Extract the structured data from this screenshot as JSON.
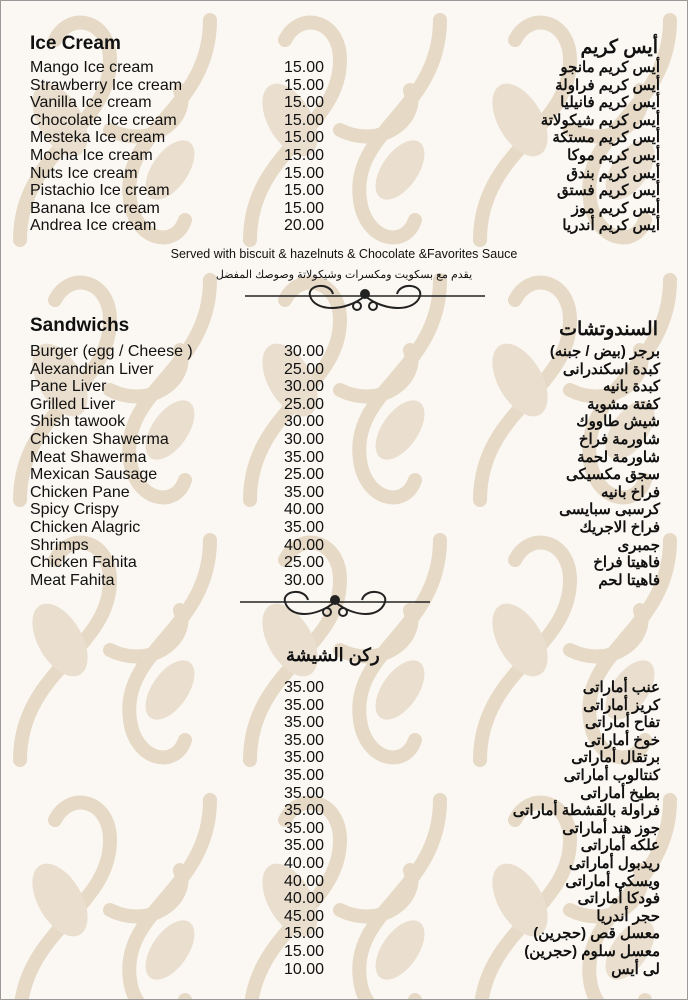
{
  "colors": {
    "background": "#fbf8f3",
    "pattern": "#e6d9c6",
    "text": "#111111"
  },
  "ice_cream": {
    "title_en": "Ice Cream",
    "title_ar": "أيس كريم",
    "items": [
      {
        "en": "Mango Ice cream",
        "price": "15.00",
        "ar": "أيس كريم مانجو"
      },
      {
        "en": "Strawberry Ice cream",
        "price": "15.00",
        "ar": "أيس كريم فراولة"
      },
      {
        "en": "Vanilla Ice cream",
        "price": "15.00",
        "ar": "أيس كريم فانيليا"
      },
      {
        "en": "Chocolate Ice cream",
        "price": "15.00",
        "ar": "أيس كريم شيكولاتة"
      },
      {
        "en": "Mesteka Ice cream",
        "price": "15.00",
        "ar": "أيس كريم مستكة"
      },
      {
        "en": "Mocha Ice cream",
        "price": "15.00",
        "ar": "أيس كريم موكا"
      },
      {
        "en": "Nuts Ice cream",
        "price": "15.00",
        "ar": "أيس كريم بندق"
      },
      {
        "en": "Pistachio Ice cream",
        "price": "15.00",
        "ar": "أيس كريم فستق"
      },
      {
        "en": "Banana Ice cream",
        "price": "15.00",
        "ar": "أيس كريم موز"
      },
      {
        "en": "Andrea Ice cream",
        "price": "20.00",
        "ar": "أيس كريم أندريا"
      }
    ],
    "note_en": "Served with biscuit & hazelnuts & Chocolate &Favorites Sauce",
    "note_ar": "يقدم مع بسكويت ومكسرات وشيكولاتة وصوصك المفضل"
  },
  "sandwiches": {
    "title_en": "Sandwichs",
    "title_ar": "السندوتشات",
    "items": [
      {
        "en": "Burger (egg / Cheese )",
        "price": "30.00",
        "ar": "برجر (بيض / جبنه)"
      },
      {
        "en": "Alexandrian Liver",
        "price": "25.00",
        "ar": "كبدة اسكندرانى"
      },
      {
        "en": "Pane Liver",
        "price": "30.00",
        "ar": "كبدة بانيه"
      },
      {
        "en": "Grilled Liver",
        "price": "25.00",
        "ar": "كفتة مشوية"
      },
      {
        "en": "Shish tawook",
        "price": "30.00",
        "ar": "شيش طاووك"
      },
      {
        "en": "Chicken Shawerma",
        "price": "30.00",
        "ar": "شاورمة فراخ"
      },
      {
        "en": "Meat Shawerma",
        "price": "35.00",
        "ar": "شاورمة لحمة"
      },
      {
        "en": "Mexican Sausage",
        "price": "25.00",
        "ar": "سجق مكسيكى"
      },
      {
        "en": "Chicken Pane",
        "price": "35.00",
        "ar": "فراخ بانيه"
      },
      {
        "en": "Spicy Crispy",
        "price": "40.00",
        "ar": "كرسبى سبايسى"
      },
      {
        "en": "Chicken Alagric",
        "price": "35.00",
        "ar": "فراخ الاجريك"
      },
      {
        "en": "Shrimps",
        "price": "40.00",
        "ar": "جمبرى"
      },
      {
        "en": "Chicken Fahita",
        "price": "25.00",
        "ar": "فاهيتا فراخ"
      },
      {
        "en": "Meat Fahita",
        "price": "30.00",
        "ar": "فاهيتا لحم"
      }
    ]
  },
  "shisha": {
    "title_ar": "ركن الشيشة",
    "items": [
      {
        "price": "35.00",
        "ar": "عنب أماراتى"
      },
      {
        "price": "35.00",
        "ar": "كريز أماراتى"
      },
      {
        "price": "35.00",
        "ar": "تفاح أماراتى"
      },
      {
        "price": "35.00",
        "ar": "خوخ أماراتى"
      },
      {
        "price": "35.00",
        "ar": "برتقال أماراتى"
      },
      {
        "price": "35.00",
        "ar": "كنتالوب أماراتى"
      },
      {
        "price": "35.00",
        "ar": "بطيخ أماراتى"
      },
      {
        "price": "35.00",
        "ar": "فراولة بالقشطة أماراتى"
      },
      {
        "price": "35.00",
        "ar": "جوز هند أماراتى"
      },
      {
        "price": "35.00",
        "ar": "علكه أماراتى"
      },
      {
        "price": "40.00",
        "ar": "ريدبول أماراتى"
      },
      {
        "price": "40.00",
        "ar": "ويسكى أماراتى"
      },
      {
        "price": "40.00",
        "ar": "فودكا أماراتى"
      },
      {
        "price": "45.00",
        "ar": "حجر أندريا"
      },
      {
        "price": "15.00",
        "ar": "معسل قص (حجرين)"
      },
      {
        "price": "15.00",
        "ar": "معسل سلوم (حجرين)"
      },
      {
        "price": "10.00",
        "ar": "لى أيس"
      }
    ]
  }
}
